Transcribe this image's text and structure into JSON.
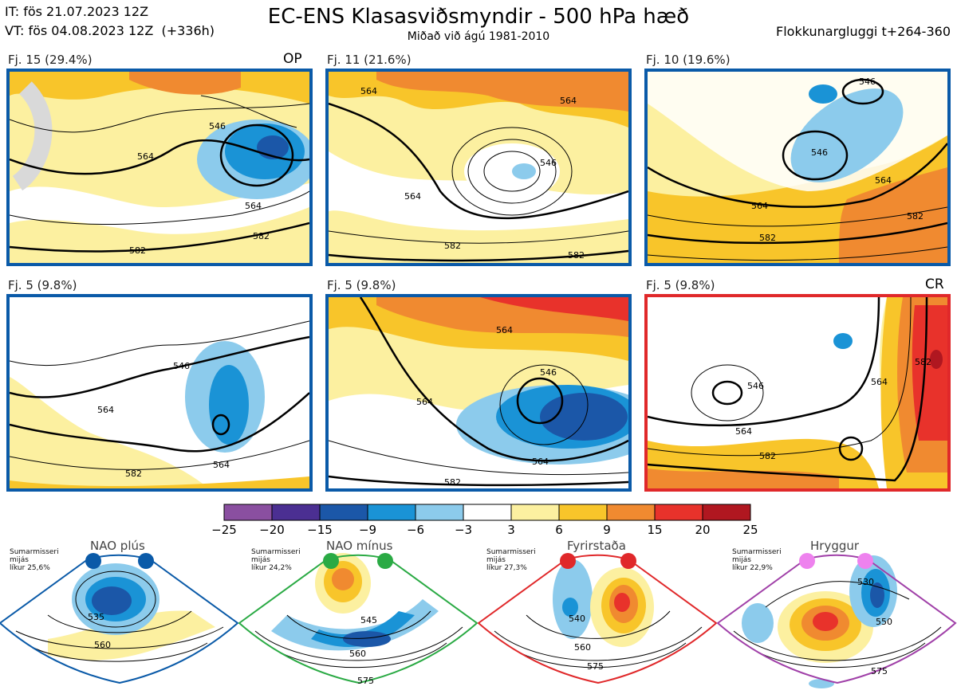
{
  "header": {
    "it_line": "IT: fös 21.07.2023 12Z",
    "vt_line": "VT: fös 04.08.2023 12Z  (+336h)",
    "title": "EC-ENS Klasasviðsmyndir - 500 hPa hæð",
    "subtitle": "Miðað við ágú 1981-2010",
    "window": "Flokkunargluggi t+264-360"
  },
  "panels": [
    {
      "label": "Fj. 15 (29.4%)",
      "tag": "OP",
      "frame_color": "#0a5aa8",
      "contours": [
        "564",
        "546",
        "564",
        "582",
        "582"
      ]
    },
    {
      "label": "Fj. 11 (21.6%)",
      "tag": "",
      "frame_color": "#0a5aa8",
      "contours": [
        "564",
        "564",
        "546",
        "564",
        "582",
        "582"
      ]
    },
    {
      "label": "Fj. 10 (19.6%)",
      "tag": "",
      "frame_color": "#0a5aa8",
      "contours": [
        "546",
        "546",
        "564",
        "582",
        "582",
        "564"
      ]
    },
    {
      "label": "Fj. 5 (9.8%)",
      "tag": "",
      "frame_color": "#0a5aa8",
      "contours": [
        "546",
        "564",
        "564",
        "582"
      ]
    },
    {
      "label": "Fj. 5 (9.8%)",
      "tag": "",
      "frame_color": "#0a5aa8",
      "contours": [
        "564",
        "546",
        "564",
        "564",
        "582"
      ]
    },
    {
      "label": "Fj. 5 (9.8%)",
      "tag": "CR",
      "frame_color": "#e0282a",
      "contours": [
        "546",
        "564",
        "582",
        "582",
        "564"
      ]
    }
  ],
  "colorbar": {
    "ticks": [
      "−25",
      "−20",
      "−15",
      "−9",
      "−6",
      "−3",
      "3",
      "6",
      "9",
      "15",
      "20",
      "25"
    ],
    "colors": [
      "#8a4fa0",
      "#4b2f92",
      "#1b57a8",
      "#1a93d6",
      "#8ccbec",
      "#ffffff",
      "#fcf0a0",
      "#f8c52a",
      "#f08a30",
      "#e8322b",
      "#b01720"
    ]
  },
  "regimes": [
    {
      "title": "NAO plús",
      "note": "Sumarmisseri\nmijás\nlíkur 25,6%",
      "color": "#0a5aa8",
      "labels": [
        "535",
        "560"
      ]
    },
    {
      "title": "NAO mínus",
      "note": "Sumarmisseri\nmijás\nlíkur 24,2%",
      "color": "#2aaa44",
      "labels": [
        "545",
        "560",
        "575"
      ]
    },
    {
      "title": "Fyrirstaða",
      "note": "Sumarmisseri\nmijás\nlíkur 27,3%",
      "color": "#e0282a",
      "labels": [
        "540",
        "560",
        "575"
      ]
    },
    {
      "title": "Hryggur",
      "note": "Sumarmisseri\nmijás\nlíkur 22,9%",
      "color": "#a040a8",
      "labels": [
        "530",
        "550",
        "575"
      ]
    }
  ]
}
